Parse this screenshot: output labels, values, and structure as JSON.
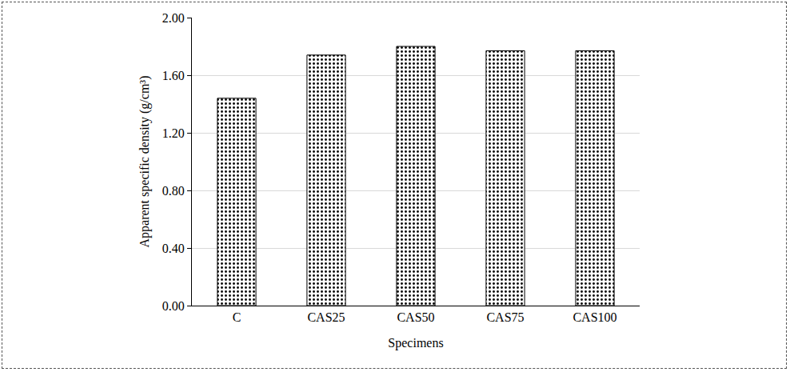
{
  "chart_data": {
    "type": "bar",
    "x_label": "Specimens",
    "y_label": "Apparent specific density (g/cm³)",
    "categories": [
      "C",
      "CAS25",
      "CAS50",
      "CAS75",
      "CAS100"
    ],
    "values": [
      1.44,
      1.74,
      1.8,
      1.77,
      1.77
    ],
    "color": "#ffffff",
    "ylim": [
      0,
      2
    ],
    "yticks": [
      {
        "value": 0,
        "label": "0.00"
      },
      {
        "value": 0.4,
        "label": "0.40"
      },
      {
        "value": 0.8,
        "label": "0.80"
      },
      {
        "value": 1.2,
        "label": "1.20"
      },
      {
        "value": 1.6,
        "label": "1.60"
      },
      {
        "value": 2,
        "label": "2.00"
      }
    ],
    "grid": true
  }
}
